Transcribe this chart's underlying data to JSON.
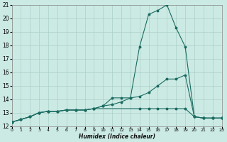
{
  "xlabel": "Humidex (Indice chaleur)",
  "bg_color": "#cceae4",
  "grid_color": "#aacfc8",
  "line_color": "#1a6b60",
  "x_min": 0,
  "x_max": 23,
  "y_min": 12,
  "y_max": 21,
  "x_ticks": [
    0,
    1,
    2,
    3,
    4,
    5,
    6,
    7,
    8,
    9,
    10,
    11,
    12,
    13,
    14,
    15,
    16,
    17,
    18,
    19,
    20,
    21,
    22,
    23
  ],
  "y_ticks": [
    12,
    13,
    14,
    15,
    16,
    17,
    18,
    19,
    20,
    21
  ],
  "curve1_x": [
    0,
    1,
    2,
    3,
    4,
    5,
    6,
    7,
    8,
    9,
    10,
    11,
    12,
    13,
    14,
    15,
    16,
    17,
    18,
    19,
    20,
    21,
    22,
    23
  ],
  "curve1_y": [
    12.3,
    12.5,
    12.7,
    13.0,
    13.1,
    13.1,
    13.2,
    13.2,
    13.2,
    13.3,
    13.5,
    14.1,
    14.1,
    14.1,
    17.9,
    20.3,
    20.6,
    21.0,
    19.3,
    17.9,
    12.7,
    12.6,
    12.6,
    12.6
  ],
  "curve2_x": [
    0,
    1,
    2,
    3,
    4,
    5,
    6,
    7,
    8,
    9,
    10,
    11,
    12,
    13,
    14,
    15,
    16,
    17,
    18,
    19,
    20,
    21,
    22,
    23
  ],
  "curve2_y": [
    12.3,
    12.5,
    12.7,
    13.0,
    13.1,
    13.1,
    13.2,
    13.2,
    13.2,
    13.3,
    13.5,
    13.6,
    13.8,
    14.1,
    14.2,
    14.5,
    15.0,
    15.5,
    15.5,
    15.8,
    12.7,
    12.6,
    12.6,
    12.6
  ],
  "curve3_x": [
    0,
    1,
    2,
    3,
    4,
    5,
    6,
    7,
    8,
    9,
    14,
    15,
    16,
    17,
    18,
    19,
    20,
    21,
    22,
    23
  ],
  "curve3_y": [
    12.3,
    12.5,
    12.7,
    13.0,
    13.1,
    13.1,
    13.2,
    13.2,
    13.2,
    13.3,
    13.3,
    13.3,
    13.3,
    13.3,
    13.3,
    13.3,
    12.7,
    12.6,
    12.6,
    12.6
  ]
}
